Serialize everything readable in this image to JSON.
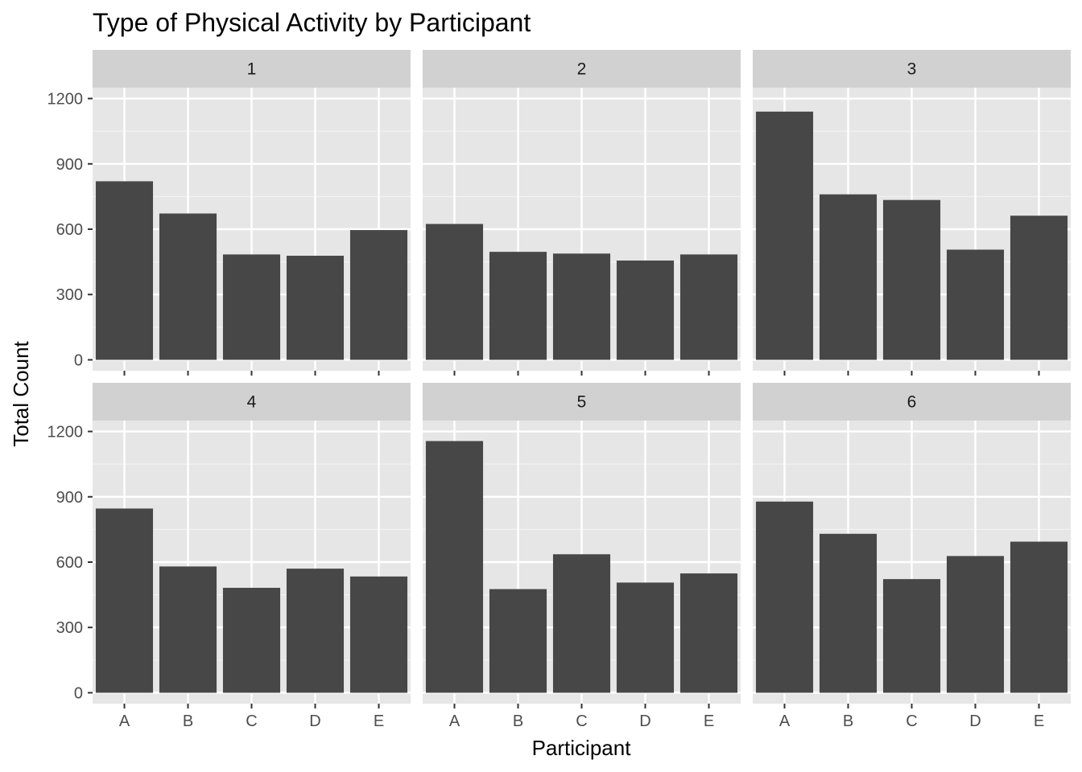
{
  "chart_data": {
    "type": "bar",
    "title": "Type of Physical Activity by Participant",
    "xlabel": "Participant",
    "ylabel": "Total Count",
    "categories": [
      "A",
      "B",
      "C",
      "D",
      "E"
    ],
    "y_ticks": [
      0,
      300,
      600,
      900,
      1200
    ],
    "y_tick_labels": [
      "0",
      "300",
      "600",
      "900",
      "1200"
    ],
    "ylim": [
      -50,
      1250
    ],
    "grid": true,
    "panels": [
      {
        "label": "1",
        "values": [
          820,
          672,
          484,
          478,
          596
        ]
      },
      {
        "label": "2",
        "values": [
          624,
          496,
          488,
          456,
          484
        ]
      },
      {
        "label": "3",
        "values": [
          1140,
          760,
          734,
          506,
          662
        ]
      },
      {
        "label": "4",
        "values": [
          846,
          580,
          482,
          570,
          534
        ]
      },
      {
        "label": "5",
        "values": [
          1156,
          476,
          636,
          506,
          548
        ]
      },
      {
        "label": "6",
        "values": [
          878,
          730,
          522,
          628,
          694
        ]
      }
    ],
    "colors": {
      "bar": "#474747",
      "panel_background": "#e6e6e6",
      "strip_background": "#d1d1d1",
      "grid_major": "#ffffff",
      "grid_minor": "#f2f2f2"
    }
  }
}
